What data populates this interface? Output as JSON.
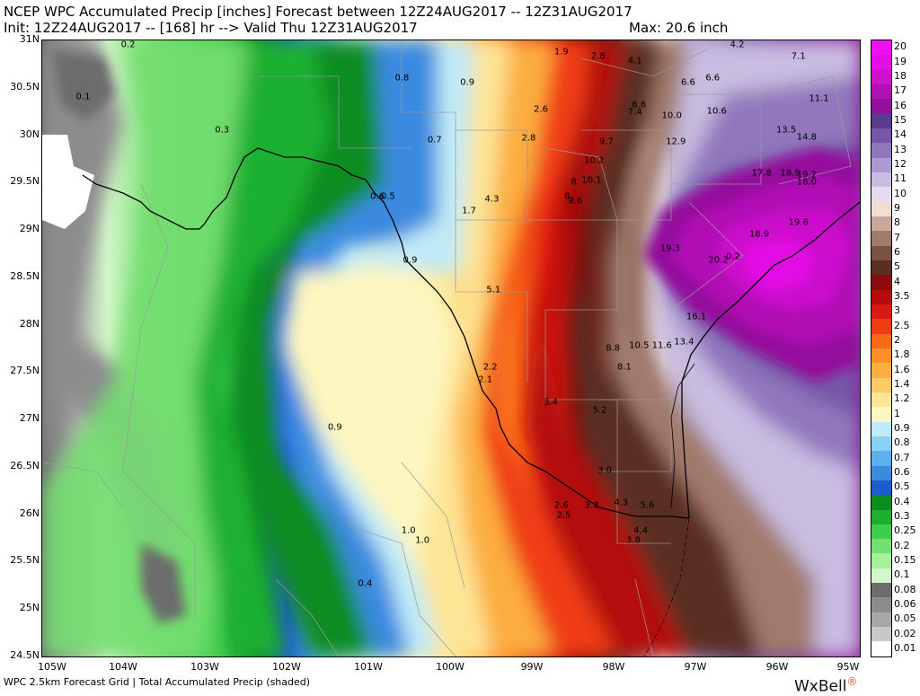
{
  "header": {
    "line1": "NCEP WPC Accumulated Precip [inches] Forecast between 12Z24AUG2017 -- 12Z31AUG2017",
    "line2": "Init: 12Z24AUG2017 -- [168] hr --> Valid Thu 12Z31AUG2017",
    "max": "Max: 20.6 inch"
  },
  "footer": "WPC 2.5km Forecast Grid | Total Accumulated Precip (shaded)",
  "brand": "WxBell",
  "latitudes": [
    "31N",
    "30.5N",
    "30N",
    "29.5N",
    "29N",
    "28.5N",
    "28N",
    "27.5N",
    "27N",
    "26.5N",
    "26N",
    "25.5N",
    "25N",
    "24.5N"
  ],
  "longitudes": [
    "105W",
    "104W",
    "103W",
    "102W",
    "101W",
    "100W",
    "99W",
    "98W",
    "97W",
    "96W",
    "95W"
  ],
  "legend": [
    {
      "label": "20",
      "color": "#f00ff0"
    },
    {
      "label": "19",
      "color": "#e20ee4"
    },
    {
      "label": "18",
      "color": "#cc10cc"
    },
    {
      "label": "17",
      "color": "#b010b4"
    },
    {
      "label": "16",
      "color": "#94109c"
    },
    {
      "label": "15",
      "color": "#5a3c8e"
    },
    {
      "label": "14",
      "color": "#7656a8"
    },
    {
      "label": "13",
      "color": "#9178bd"
    },
    {
      "label": "12",
      "color": "#ad9ad0"
    },
    {
      "label": "11",
      "color": "#c8bce0"
    },
    {
      "label": "10",
      "color": "#e4dcee"
    },
    {
      "label": "9",
      "color": "#f0ded4"
    },
    {
      "label": "8",
      "color": "#c8a89a"
    },
    {
      "label": "7",
      "color": "#a07a6c"
    },
    {
      "label": "6",
      "color": "#7a5244"
    },
    {
      "label": "5",
      "color": "#5a2e22"
    },
    {
      "label": "4",
      "color": "#8c0a0a"
    },
    {
      "label": "3.5",
      "color": "#b40c0c"
    },
    {
      "label": "3",
      "color": "#d81a12"
    },
    {
      "label": "2.5",
      "color": "#f03c14"
    },
    {
      "label": "2",
      "color": "#f86a18"
    },
    {
      "label": "1.8",
      "color": "#fb8e26"
    },
    {
      "label": "1.6",
      "color": "#fcae40"
    },
    {
      "label": "1.4",
      "color": "#fdca68"
    },
    {
      "label": "1.2",
      "color": "#fde596"
    },
    {
      "label": "1",
      "color": "#fdf6c0"
    },
    {
      "label": "0.9",
      "color": "#bfeaf7"
    },
    {
      "label": "0.8",
      "color": "#8cd0f5"
    },
    {
      "label": "0.7",
      "color": "#5cb0f0"
    },
    {
      "label": "0.6",
      "color": "#3a8ae0"
    },
    {
      "label": "0.5",
      "color": "#1e5ccc"
    },
    {
      "label": "0.4",
      "color": "#0c8c20"
    },
    {
      "label": "0.3",
      "color": "#1cb030"
    },
    {
      "label": "0.25",
      "color": "#40cc4c"
    },
    {
      "label": "0.2",
      "color": "#74de70"
    },
    {
      "label": "0.15",
      "color": "#a8ee9c"
    },
    {
      "label": "0.1",
      "color": "#d2f6c8"
    },
    {
      "label": "0.08",
      "color": "#6c6c6c"
    },
    {
      "label": "0.06",
      "color": "#8c8c8c"
    },
    {
      "label": "0.05",
      "color": "#a8a8a8"
    },
    {
      "label": "0.02",
      "color": "#c8c8c8"
    },
    {
      "label": "0.01",
      "color": "#ffffff"
    }
  ],
  "annotations": [
    {
      "text": "0.2",
      "lon": -103.95,
      "lat": 30.95
    },
    {
      "text": "0.1",
      "lon": -104.5,
      "lat": 30.4
    },
    {
      "text": "0.3",
      "lon": -102.8,
      "lat": 30.05
    },
    {
      "text": "0.8",
      "lon": -100.6,
      "lat": 30.6
    },
    {
      "text": "0.9",
      "lon": -99.8,
      "lat": 30.55
    },
    {
      "text": "0.7",
      "lon": -100.2,
      "lat": 29.95
    },
    {
      "text": "1.9",
      "lon": -98.65,
      "lat": 30.88
    },
    {
      "text": "2.8",
      "lon": -98.2,
      "lat": 30.83
    },
    {
      "text": "4.1",
      "lon": -97.75,
      "lat": 30.78
    },
    {
      "text": "4.2",
      "lon": -96.5,
      "lat": 30.95
    },
    {
      "text": "7.1",
      "lon": -95.75,
      "lat": 30.83
    },
    {
      "text": "6.6",
      "lon": -97.1,
      "lat": 30.55
    },
    {
      "text": "6.6",
      "lon": -96.8,
      "lat": 30.6
    },
    {
      "text": "11.1",
      "lon": -95.5,
      "lat": 30.38
    },
    {
      "text": "2.6",
      "lon": -98.9,
      "lat": 30.27
    },
    {
      "text": "6.6",
      "lon": -97.7,
      "lat": 30.32
    },
    {
      "text": "7.4",
      "lon": -97.75,
      "lat": 30.24
    },
    {
      "text": "10.0",
      "lon": -97.3,
      "lat": 30.2
    },
    {
      "text": "10.6",
      "lon": -96.75,
      "lat": 30.25
    },
    {
      "text": "13.5",
      "lon": -95.9,
      "lat": 30.05
    },
    {
      "text": "14.8",
      "lon": -95.65,
      "lat": 29.98
    },
    {
      "text": "2.8",
      "lon": -99.05,
      "lat": 29.97
    },
    {
      "text": "9.7",
      "lon": -98.1,
      "lat": 29.93
    },
    {
      "text": "12.9",
      "lon": -97.25,
      "lat": 29.93
    },
    {
      "text": "10.2",
      "lon": -98.25,
      "lat": 29.73
    },
    {
      "text": "17.8",
      "lon": -96.2,
      "lat": 29.6
    },
    {
      "text": "18.9",
      "lon": -95.85,
      "lat": 29.6
    },
    {
      "text": "19.2",
      "lon": -95.65,
      "lat": 29.58
    },
    {
      "text": "18.0",
      "lon": -95.65,
      "lat": 29.5
    },
    {
      "text": "8.",
      "lon": -98.48,
      "lat": 29.5
    },
    {
      "text": "10.1",
      "lon": -98.28,
      "lat": 29.52
    },
    {
      "text": "8",
      "lon": -98.58,
      "lat": 29.35
    },
    {
      "text": "9.6",
      "lon": -98.48,
      "lat": 29.3
    },
    {
      "text": "4.3",
      "lon": -99.5,
      "lat": 29.32
    },
    {
      "text": "0.6",
      "lon": -100.9,
      "lat": 29.35
    },
    {
      "text": "0.5",
      "lon": -100.77,
      "lat": 29.35
    },
    {
      "text": "1.7",
      "lon": -99.78,
      "lat": 29.2
    },
    {
      "text": "19.6",
      "lon": -95.75,
      "lat": 29.08
    },
    {
      "text": "19.3",
      "lon": -97.32,
      "lat": 28.8
    },
    {
      "text": "18.9",
      "lon": -96.23,
      "lat": 28.95
    },
    {
      "text": "20.2",
      "lon": -96.73,
      "lat": 28.68
    },
    {
      "text": "0.2",
      "lon": -96.55,
      "lat": 28.72
    },
    {
      "text": "0.9",
      "lon": -100.5,
      "lat": 28.68
    },
    {
      "text": "5.1",
      "lon": -99.48,
      "lat": 28.37
    },
    {
      "text": "16.1",
      "lon": -97.0,
      "lat": 28.08
    },
    {
      "text": "8.8",
      "lon": -98.02,
      "lat": 27.75
    },
    {
      "text": "10.5",
      "lon": -97.7,
      "lat": 27.78
    },
    {
      "text": "11.6",
      "lon": -97.42,
      "lat": 27.78
    },
    {
      "text": "13.4",
      "lon": -97.15,
      "lat": 27.82
    },
    {
      "text": "2.2",
      "lon": -99.52,
      "lat": 27.55
    },
    {
      "text": "2.1",
      "lon": -99.58,
      "lat": 27.42
    },
    {
      "text": "8.1",
      "lon": -97.88,
      "lat": 27.55
    },
    {
      "text": "3.4",
      "lon": -98.78,
      "lat": 27.18
    },
    {
      "text": "5.2",
      "lon": -98.18,
      "lat": 27.1
    },
    {
      "text": "0.9",
      "lon": -101.42,
      "lat": 26.92
    },
    {
      "text": "3.0",
      "lon": -98.12,
      "lat": 26.46
    },
    {
      "text": "2.6",
      "lon": -98.65,
      "lat": 26.09
    },
    {
      "text": "3.2",
      "lon": -98.28,
      "lat": 26.09
    },
    {
      "text": "4.3",
      "lon": -97.92,
      "lat": 26.12
    },
    {
      "text": "5.6",
      "lon": -97.6,
      "lat": 26.09
    },
    {
      "text": "2.5",
      "lon": -98.62,
      "lat": 25.99
    },
    {
      "text": "1.0",
      "lon": -100.52,
      "lat": 25.83
    },
    {
      "text": "1.0",
      "lon": -100.35,
      "lat": 25.72
    },
    {
      "text": "4.4",
      "lon": -97.68,
      "lat": 25.83
    },
    {
      "text": "3.8",
      "lon": -97.77,
      "lat": 25.72
    },
    {
      "text": "0.4",
      "lon": -101.05,
      "lat": 25.27
    }
  ]
}
